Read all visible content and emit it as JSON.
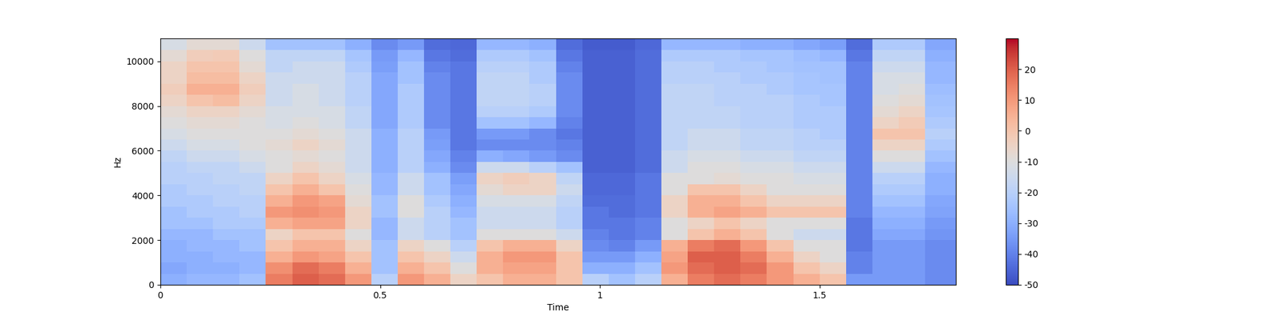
{
  "chart_data": {
    "type": "heatmap",
    "color": "coolwarm",
    "xlabel": "Time",
    "ylabel": "Hz",
    "xlim": [
      0,
      1.81
    ],
    "xticks": [
      0,
      0.5,
      1,
      1.5
    ],
    "ylim": [
      0,
      11025
    ],
    "yticks": [
      0,
      2000,
      4000,
      6000,
      8000,
      10000
    ],
    "time_edges": [
      0,
      0.06,
      0.12,
      0.18,
      0.24,
      0.3,
      0.36,
      0.42,
      0.48,
      0.54,
      0.6,
      0.66,
      0.72,
      0.78,
      0.84,
      0.9,
      0.96,
      1.02,
      1.08,
      1.14,
      1.2,
      1.26,
      1.32,
      1.38,
      1.44,
      1.5,
      1.56,
      1.62,
      1.68,
      1.74,
      1.81
    ],
    "frequency_edges": [
      0,
      500,
      1000,
      1500,
      2000,
      2500,
      3000,
      3500,
      4000,
      4500,
      5000,
      5500,
      6000,
      6500,
      7000,
      7500,
      8000,
      8500,
      9000,
      9500,
      10000,
      10500,
      11025
    ],
    "colorbar_range": [
      -50,
      30
    ],
    "colorbar_ticks": [
      -50,
      -40,
      -30,
      -20,
      -10,
      0,
      10,
      20
    ],
    "cells": [
      [
        -30,
        -28,
        -28,
        -25,
        15,
        20,
        18,
        10,
        -20,
        10,
        5,
        -5,
        0,
        5,
        5,
        0,
        -20,
        -25,
        -20,
        5,
        15,
        18,
        15,
        10,
        5,
        0,
        -35,
        -35,
        -35,
        -38
      ],
      [
        -32,
        -30,
        -30,
        -28,
        12,
        18,
        15,
        5,
        -25,
        5,
        0,
        -10,
        5,
        8,
        8,
        0,
        -30,
        -30,
        -25,
        10,
        18,
        20,
        18,
        10,
        0,
        -5,
        -40,
        -35,
        -35,
        -38
      ],
      [
        -30,
        -30,
        -28,
        -28,
        5,
        10,
        8,
        0,
        -25,
        0,
        -5,
        -15,
        5,
        10,
        10,
        0,
        -35,
        -35,
        -30,
        8,
        20,
        20,
        15,
        5,
        -5,
        -10,
        -40,
        -35,
        -35,
        -38
      ],
      [
        -30,
        -28,
        -28,
        -25,
        0,
        5,
        5,
        -5,
        -25,
        -5,
        -10,
        -20,
        0,
        5,
        5,
        -5,
        -38,
        -40,
        -35,
        5,
        15,
        18,
        10,
        0,
        -10,
        -10,
        -42,
        -35,
        -35,
        -38
      ],
      [
        -28,
        -28,
        -25,
        -25,
        -5,
        0,
        0,
        -10,
        -28,
        -15,
        -20,
        -25,
        -10,
        -10,
        -10,
        -15,
        -40,
        -42,
        -40,
        -10,
        0,
        5,
        0,
        -10,
        -15,
        -15,
        -42,
        -32,
        -32,
        -36
      ],
      [
        -25,
        -25,
        -22,
        -22,
        5,
        8,
        8,
        -5,
        -28,
        -15,
        -20,
        -25,
        -15,
        -15,
        -15,
        -20,
        -42,
        -42,
        -40,
        -10,
        -5,
        0,
        -5,
        -10,
        -10,
        -10,
        -42,
        -30,
        -30,
        -35
      ],
      [
        -25,
        -22,
        -22,
        -20,
        10,
        12,
        10,
        -5,
        -25,
        -10,
        -20,
        -28,
        -15,
        -15,
        -15,
        -20,
        -42,
        -44,
        -42,
        -5,
        5,
        8,
        5,
        0,
        0,
        0,
        -40,
        -28,
        -28,
        -33
      ],
      [
        -22,
        -22,
        -20,
        -20,
        5,
        10,
        8,
        -8,
        -25,
        -10,
        -22,
        -30,
        -12,
        -12,
        -12,
        -18,
        -44,
        -44,
        -42,
        -5,
        5,
        5,
        0,
        -5,
        -5,
        -5,
        -40,
        -25,
        -25,
        -32
      ],
      [
        -22,
        -20,
        -20,
        -18,
        0,
        5,
        0,
        -10,
        -28,
        -15,
        -25,
        -32,
        -8,
        -5,
        -5,
        -15,
        -45,
        -45,
        -42,
        -10,
        0,
        0,
        -5,
        -10,
        -10,
        -10,
        -40,
        -22,
        -22,
        -30
      ],
      [
        -20,
        -20,
        -18,
        -18,
        -5,
        0,
        -5,
        -12,
        -28,
        -15,
        -25,
        -34,
        -5,
        -3,
        -5,
        -18,
        -45,
        -45,
        -42,
        -10,
        -10,
        -8,
        -10,
        -10,
        -12,
        -12,
        -40,
        -20,
        -20,
        -30
      ],
      [
        -20,
        -18,
        -18,
        -15,
        -10,
        -5,
        -8,
        -15,
        -30,
        -20,
        -30,
        -38,
        -15,
        -15,
        -20,
        -25,
        -46,
        -46,
        -44,
        -15,
        -10,
        -10,
        -12,
        -12,
        -15,
        -15,
        -40,
        -15,
        -15,
        -28
      ],
      [
        -18,
        -15,
        -15,
        -12,
        -10,
        -8,
        -10,
        -15,
        -30,
        -20,
        -32,
        -40,
        -30,
        -32,
        -35,
        -38,
        -46,
        -46,
        -44,
        -15,
        -12,
        -12,
        -15,
        -15,
        -18,
        -18,
        -40,
        -10,
        -10,
        -25
      ],
      [
        -15,
        -12,
        -12,
        -10,
        -8,
        -5,
        -8,
        -15,
        -30,
        -20,
        -34,
        -42,
        -38,
        -38,
        -38,
        -40,
        -46,
        -46,
        -44,
        -18,
        -15,
        -15,
        -18,
        -18,
        -20,
        -20,
        -40,
        -5,
        -5,
        -22
      ],
      [
        -12,
        -10,
        -10,
        -10,
        -10,
        -8,
        -10,
        -15,
        -30,
        -20,
        -35,
        -42,
        -35,
        -35,
        -38,
        -42,
        -46,
        -46,
        -44,
        -18,
        -15,
        -15,
        -18,
        -18,
        -20,
        -22,
        -40,
        0,
        0,
        -20
      ],
      [
        -10,
        -8,
        -8,
        -10,
        -12,
        -10,
        -12,
        -18,
        -32,
        -22,
        -38,
        -42,
        -25,
        -25,
        -28,
        -40,
        -46,
        -46,
        -44,
        -18,
        -18,
        -18,
        -20,
        -20,
        -22,
        -22,
        -40,
        -5,
        -2,
        -22
      ],
      [
        -8,
        -5,
        -5,
        -8,
        -12,
        -12,
        -12,
        -18,
        -32,
        -22,
        -38,
        -42,
        -20,
        -20,
        -22,
        -38,
        -46,
        -46,
        -44,
        -18,
        -18,
        -18,
        -20,
        -20,
        -22,
        -22,
        -40,
        -8,
        -5,
        -24
      ],
      [
        -5,
        0,
        2,
        -5,
        -15,
        -12,
        -15,
        -20,
        -32,
        -22,
        -38,
        -42,
        -18,
        -18,
        -20,
        -38,
        -46,
        -46,
        -44,
        -18,
        -18,
        -20,
        -20,
        -20,
        -22,
        -24,
        -40,
        -10,
        -8,
        -25
      ],
      [
        -3,
        5,
        5,
        -3,
        -15,
        -12,
        -15,
        -20,
        -32,
        -22,
        -38,
        -42,
        -18,
        -18,
        -20,
        -38,
        -46,
        -46,
        -44,
        -18,
        -18,
        -20,
        -20,
        -22,
        -24,
        -24,
        -40,
        -12,
        -10,
        -26
      ],
      [
        -5,
        2,
        2,
        -5,
        -15,
        -15,
        -15,
        -20,
        -32,
        -25,
        -38,
        -42,
        -18,
        -18,
        -22,
        -38,
        -46,
        -46,
        -44,
        -20,
        -20,
        -20,
        -22,
        -22,
        -24,
        -25,
        -40,
        -12,
        -12,
        -28
      ],
      [
        -5,
        0,
        0,
        -8,
        -18,
        -15,
        -15,
        -22,
        -34,
        -25,
        -40,
        -42,
        -20,
        -20,
        -22,
        -40,
        -46,
        -46,
        -44,
        -20,
        -20,
        -22,
        -22,
        -24,
        -25,
        -25,
        -40,
        -15,
        -15,
        -28
      ],
      [
        -8,
        -3,
        -2,
        -10,
        -18,
        -18,
        -18,
        -24,
        -35,
        -28,
        -42,
        -44,
        -22,
        -22,
        -25,
        -42,
        -46,
        -46,
        -44,
        -22,
        -22,
        -22,
        -24,
        -24,
        -26,
        -28,
        -42,
        -18,
        -18,
        -30
      ],
      [
        -12,
        -8,
        -8,
        -15,
        -25,
        -25,
        -25,
        -30,
        -38,
        -35,
        -44,
        -45,
        -28,
        -28,
        -30,
        -44,
        -47,
        -47,
        -45,
        -28,
        -28,
        -28,
        -30,
        -30,
        -32,
        -34,
        -44,
        -22,
        -22,
        -32
      ]
    ]
  }
}
